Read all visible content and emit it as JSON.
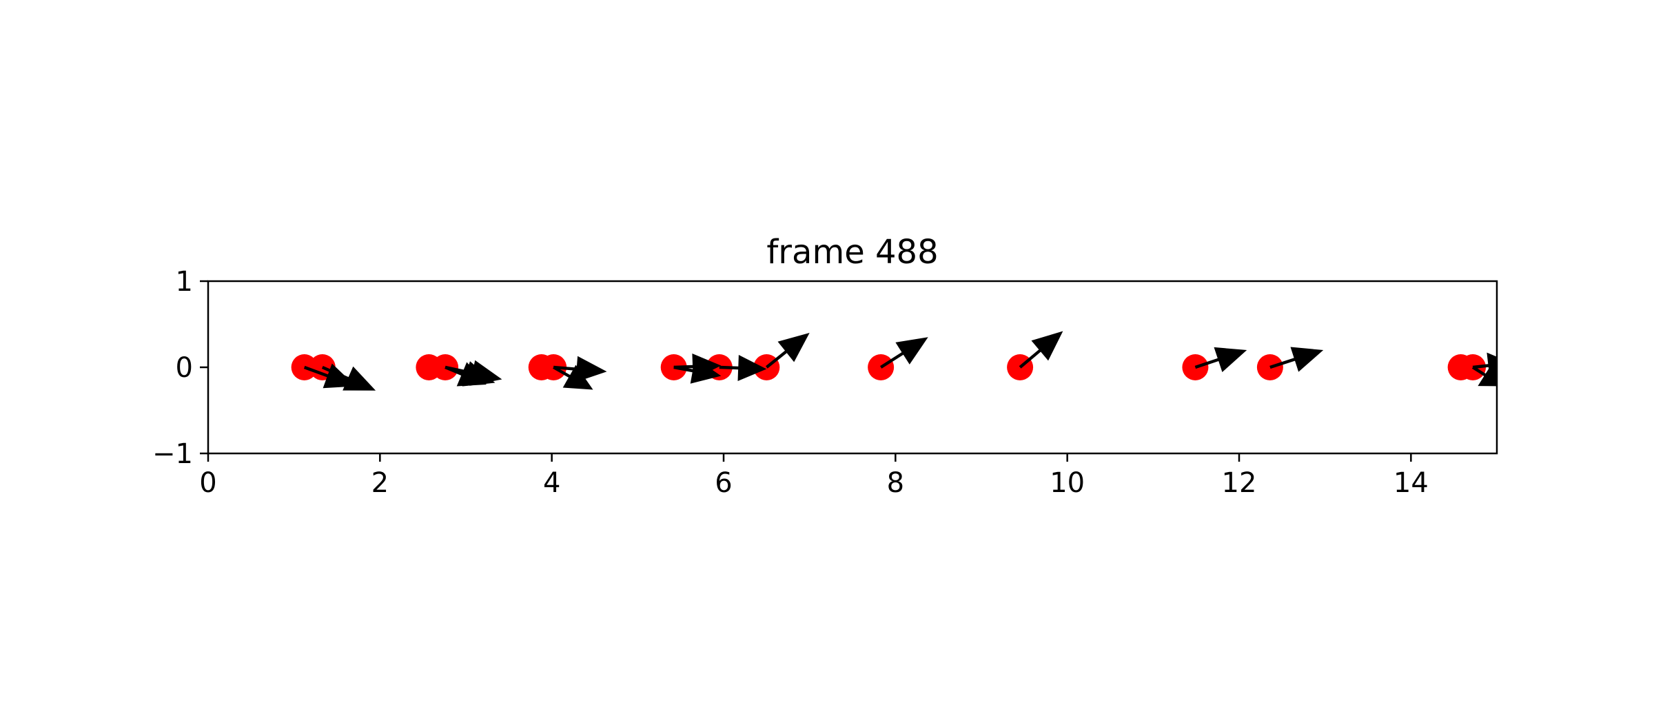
{
  "chart_data": {
    "type": "scatter",
    "title": "frame 488",
    "xlabel": "",
    "ylabel": "",
    "xlim": [
      0,
      15
    ],
    "ylim": [
      -1,
      1
    ],
    "xticks": [
      0,
      2,
      4,
      6,
      8,
      10,
      12,
      14
    ],
    "yticks": [
      -1,
      0,
      1
    ],
    "grid": false,
    "legend": "none",
    "point_color": "#ff0000",
    "arrow_color": "#000000",
    "points": [
      {
        "x": 1.12,
        "y": 0
      },
      {
        "x": 1.33,
        "y": 0
      },
      {
        "x": 2.57,
        "y": 0
      },
      {
        "x": 2.76,
        "y": 0
      },
      {
        "x": 3.88,
        "y": 0
      },
      {
        "x": 4.02,
        "y": 0
      },
      {
        "x": 5.42,
        "y": 0
      },
      {
        "x": 5.95,
        "y": 0
      },
      {
        "x": 6.5,
        "y": 0
      },
      {
        "x": 7.83,
        "y": 0
      },
      {
        "x": 9.45,
        "y": 0
      },
      {
        "x": 11.49,
        "y": 0
      },
      {
        "x": 12.36,
        "y": 0
      },
      {
        "x": 14.58,
        "y": 0
      },
      {
        "x": 14.72,
        "y": 0
      }
    ],
    "arrows": [
      {
        "x": 1.12,
        "y": 0,
        "dx": 0.6,
        "dy": -0.22
      },
      {
        "x": 1.33,
        "y": 0,
        "dx": 0.62,
        "dy": -0.27
      },
      {
        "x": 2.76,
        "y": 0,
        "dx": 0.48,
        "dy": -0.2
      },
      {
        "x": 2.76,
        "y": 0,
        "dx": 0.58,
        "dy": -0.18
      },
      {
        "x": 2.76,
        "y": 0,
        "dx": 0.66,
        "dy": -0.14
      },
      {
        "x": 4.02,
        "y": 0,
        "dx": 0.62,
        "dy": -0.05
      },
      {
        "x": 4.02,
        "y": 0,
        "dx": 0.46,
        "dy": -0.26
      },
      {
        "x": 5.42,
        "y": 0,
        "dx": 0.55,
        "dy": -0.1
      },
      {
        "x": 5.42,
        "y": 0,
        "dx": 0.55,
        "dy": 0.02
      },
      {
        "x": 5.95,
        "y": 0,
        "dx": 0.55,
        "dy": -0.02
      },
      {
        "x": 6.5,
        "y": 0,
        "dx": 0.5,
        "dy": 0.4
      },
      {
        "x": 7.83,
        "y": 0,
        "dx": 0.55,
        "dy": 0.35
      },
      {
        "x": 9.45,
        "y": 0,
        "dx": 0.5,
        "dy": 0.42
      },
      {
        "x": 11.49,
        "y": 0,
        "dx": 0.6,
        "dy": 0.2
      },
      {
        "x": 12.36,
        "y": 0,
        "dx": 0.62,
        "dy": 0.2
      },
      {
        "x": 14.72,
        "y": 0,
        "dx": 0.45,
        "dy": 0.05
      },
      {
        "x": 14.72,
        "y": 0,
        "dx": 0.35,
        "dy": -0.22
      }
    ]
  }
}
